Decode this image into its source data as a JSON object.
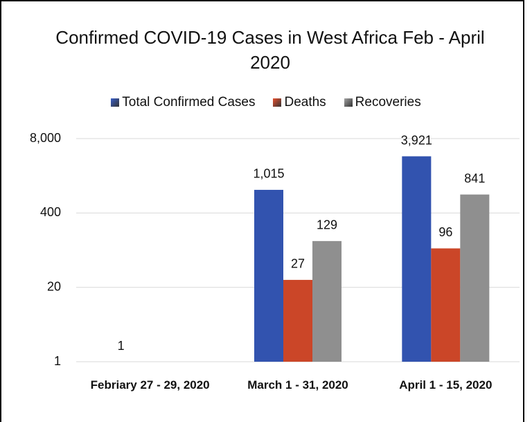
{
  "chart_data": {
    "type": "bar",
    "title": "Confirmed COVID-19 Cases in West Africa Feb - April 2020",
    "categories": [
      "Febriary 27 - 29, 2020",
      "March 1 - 31, 2020",
      "April 1 - 15, 2020"
    ],
    "series": [
      {
        "name": "Total Confirmed Cases",
        "color": "#3a5fc8",
        "values": [
          1,
          1015,
          3921
        ],
        "value_labels": [
          "1",
          "1,015",
          "3,921"
        ]
      },
      {
        "name": "Deaths",
        "color": "#e8502e",
        "values": [
          null,
          27,
          96
        ]
      },
      {
        "name": "Recoveries",
        "color": "#a3a3a3",
        "values": [
          null,
          129,
          841
        ]
      }
    ],
    "ylim": [
      1,
      8000
    ],
    "yticks": [
      1,
      20,
      400,
      {
        "value": 8000,
        "label": "8,000"
      }
    ],
    "log_scale": true,
    "grid": true,
    "legend": "top"
  }
}
